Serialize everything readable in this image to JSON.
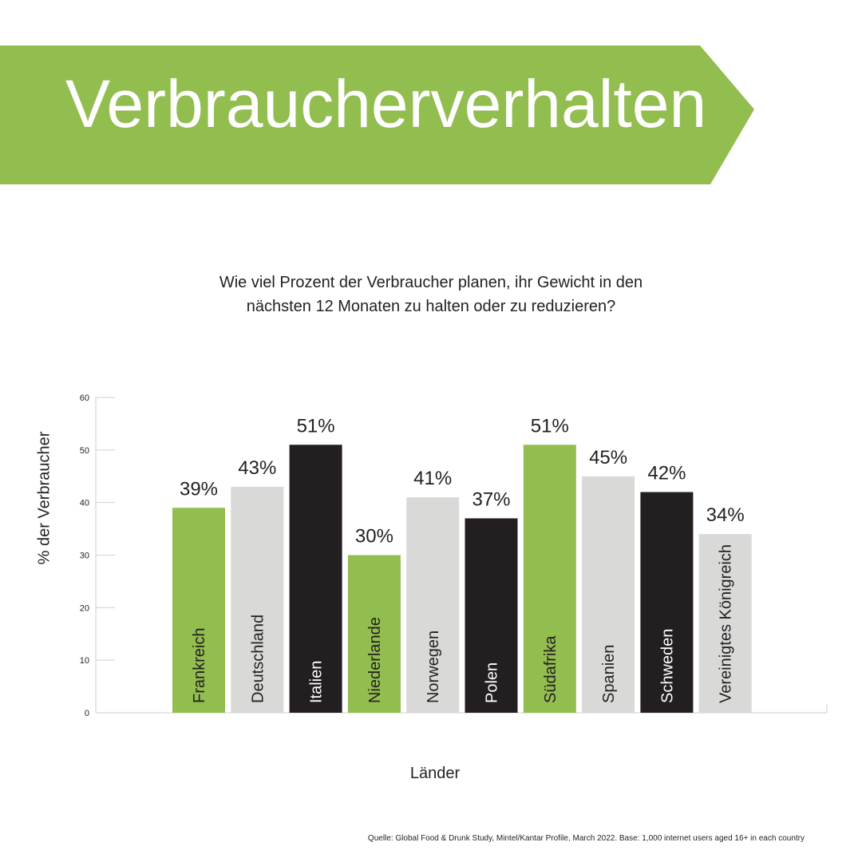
{
  "header": {
    "title": "Verbraucherverhalten"
  },
  "question": {
    "line1": "Wie viel Prozent der Verbraucher planen, ihr Gewicht in den",
    "line2": "nächsten 12 Monaten zu halten oder zu reduzieren?"
  },
  "source": "Quelle: Global Food & Drunk Study, Mintel/Kantar Profile, March 2022. Base: 1,000 internet users aged 16+ in each country",
  "colors": {
    "green": "#92bd4f",
    "grey": "#d9d9d8",
    "black": "#231f20"
  },
  "chart_data": {
    "type": "bar",
    "title": "Wie viel Prozent der Verbraucher planen, ihr Gewicht in den nächsten 12 Monaten zu halten oder zu reduzieren?",
    "xlabel": "Länder",
    "ylabel": "% der Verbraucher",
    "ylim": [
      0,
      60
    ],
    "yticks": [
      "0",
      "10",
      "20",
      "30",
      "40",
      "50",
      "60"
    ],
    "grid": false,
    "categories": [
      "Frankreich",
      "Deutschland",
      "Italien",
      "Niederlande",
      "Norwegen",
      "Polen",
      "Südafrika",
      "Spanien",
      "Schweden",
      "Vereinigtes Königreich"
    ],
    "values": [
      39,
      43,
      51,
      30,
      41,
      37,
      51,
      45,
      42,
      34
    ],
    "data_labels": [
      "39%",
      "43%",
      "51%",
      "30%",
      "41%",
      "37%",
      "51%",
      "45%",
      "42%",
      "34%"
    ],
    "bar_colors": [
      "green",
      "grey",
      "black",
      "green",
      "grey",
      "black",
      "green",
      "grey",
      "black",
      "grey"
    ]
  }
}
